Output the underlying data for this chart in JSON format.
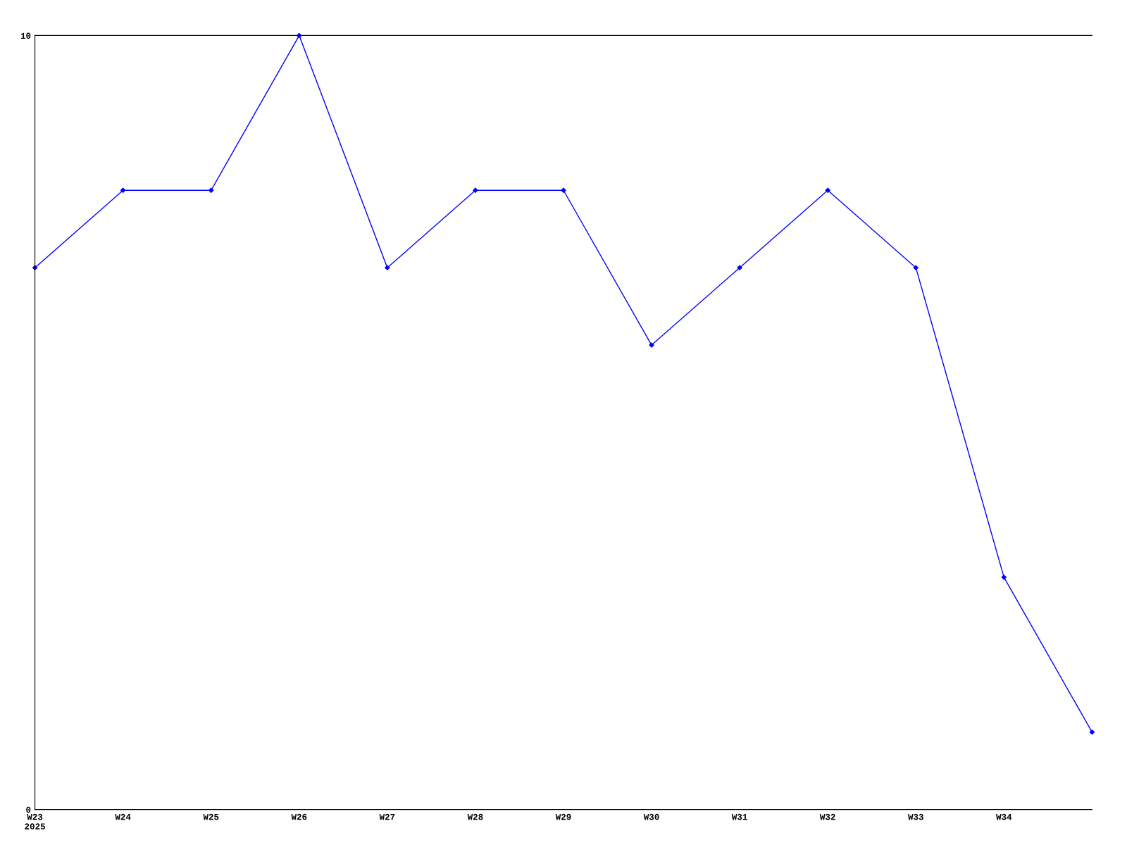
{
  "chart_data": {
    "type": "line",
    "categories": [
      "W23\n2025",
      "W24",
      "W25",
      "W26",
      "W27",
      "W28",
      "W29",
      "W30",
      "W31",
      "W32",
      "W33",
      "W34",
      null
    ],
    "series": [
      {
        "color": "#0000ff",
        "values": [
          7,
          8,
          8,
          10,
          7,
          8,
          8,
          6,
          7,
          8,
          7,
          3,
          1
        ]
      }
    ],
    "ylim": [
      0,
      10
    ],
    "yticks": [
      0,
      10
    ],
    "grid": false,
    "legend": false,
    "marker": "diamond",
    "line_style": "solid"
  }
}
